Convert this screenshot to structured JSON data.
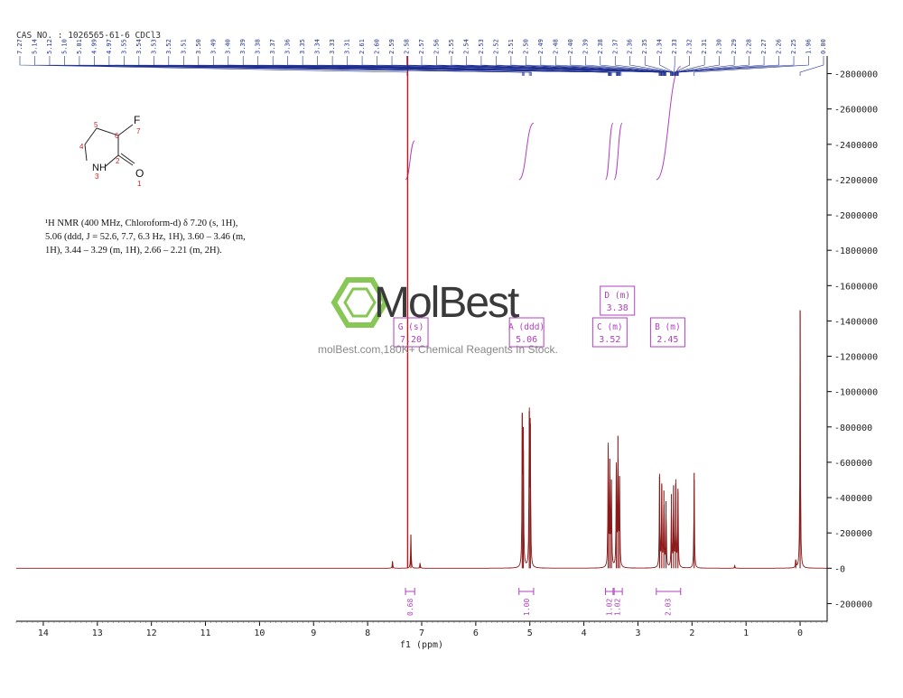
{
  "header": {
    "sample": "CAS NO. : 1026565-61-6 CDCl3"
  },
  "structure": {
    "atoms": [
      "F",
      "NH",
      "O"
    ],
    "numbers": [
      "1",
      "2",
      "3",
      "4",
      "5",
      "6",
      "7"
    ]
  },
  "nmr_text": {
    "line1": "¹H NMR (400 MHz, Chloroform-d) δ 7.20 (s, 1H),",
    "line2": "5.06 (ddd, J = 52.6, 7.7, 6.3 Hz, 1H), 3.60 – 3.46 (m,",
    "line3": "1H), 3.44 – 3.29 (m, 1H), 2.66 – 2.21 (m, 2H)."
  },
  "watermark": {
    "logo": "MolBest",
    "tagline": "molBest.com,180K+ Chemical Reagents In Stock."
  },
  "colors": {
    "spectrum": "#8b1a1a",
    "integral": "#b040c0",
    "peaklist": "#1f2f8f",
    "accent_line": "#cc1111",
    "logo_green": "#7ac143"
  },
  "chart_data": {
    "type": "line",
    "title": "",
    "xlabel": "f1 (ppm)",
    "ylabel": "",
    "xlim": [
      14.5,
      -0.5
    ],
    "ylim": [
      -300000,
      2900000
    ],
    "x_ticks": [
      14,
      13,
      12,
      11,
      10,
      9,
      8,
      7,
      6,
      5,
      4,
      3,
      2,
      1,
      0
    ],
    "y_ticks": [
      -200000,
      0,
      200000,
      400000,
      600000,
      800000,
      1000000,
      1200000,
      1400000,
      1600000,
      1800000,
      2000000,
      2200000,
      2400000,
      2600000,
      2800000
    ],
    "peaks": [
      {
        "x": 7.26,
        "y": 2900000
      },
      {
        "x": 7.2,
        "y": 190000
      },
      {
        "x": 7.54,
        "y": 40000
      },
      {
        "x": 7.03,
        "y": 30000
      },
      {
        "x": 5.14,
        "y": 880000
      },
      {
        "x": 5.12,
        "y": 800000
      },
      {
        "x": 5.01,
        "y": 890000
      },
      {
        "x": 4.99,
        "y": 820000
      },
      {
        "x": 3.55,
        "y": 680000
      },
      {
        "x": 3.52,
        "y": 620000
      },
      {
        "x": 3.49,
        "y": 500000
      },
      {
        "x": 3.4,
        "y": 560000
      },
      {
        "x": 3.37,
        "y": 750000
      },
      {
        "x": 3.34,
        "y": 520000
      },
      {
        "x": 2.6,
        "y": 520000
      },
      {
        "x": 2.56,
        "y": 480000
      },
      {
        "x": 2.52,
        "y": 440000
      },
      {
        "x": 2.48,
        "y": 380000
      },
      {
        "x": 2.38,
        "y": 420000
      },
      {
        "x": 2.34,
        "y": 470000
      },
      {
        "x": 2.3,
        "y": 480000
      },
      {
        "x": 2.26,
        "y": 450000
      },
      {
        "x": 1.96,
        "y": 540000
      },
      {
        "x": 1.21,
        "y": 15000
      },
      {
        "x": 0.08,
        "y": 50000
      },
      {
        "x": 0.0,
        "y": 1460000
      }
    ],
    "peak_labels": [
      "7.27",
      "5.14",
      "5.12",
      "5.10",
      "5.01",
      "4.99",
      "4.97",
      "3.55",
      "3.54",
      "3.53",
      "3.52",
      "3.51",
      "3.50",
      "3.49",
      "3.40",
      "3.39",
      "3.38",
      "3.37",
      "3.36",
      "3.35",
      "3.34",
      "3.33",
      "3.31",
      "2.61",
      "2.60",
      "2.59",
      "2.58",
      "2.57",
      "2.56",
      "2.55",
      "2.54",
      "2.53",
      "2.52",
      "2.51",
      "2.50",
      "2.49",
      "2.48",
      "2.40",
      "2.39",
      "2.38",
      "2.37",
      "2.36",
      "2.35",
      "2.34",
      "2.33",
      "2.32",
      "2.31",
      "2.30",
      "2.29",
      "2.28",
      "2.27",
      "2.26",
      "2.25",
      "1.96",
      "0.00"
    ],
    "multiplets": [
      {
        "letter": "G",
        "mult": "(s)",
        "shift": "7.20"
      },
      {
        "letter": "A",
        "mult": "(ddd)",
        "shift": "5.06"
      },
      {
        "letter": "C",
        "mult": "(m)",
        "shift": "3.52"
      },
      {
        "letter": "D",
        "mult": "(m)",
        "shift": "3.38"
      },
      {
        "letter": "B",
        "mult": "(m)",
        "shift": "2.45"
      }
    ],
    "integrals": [
      {
        "from": 7.3,
        "to": 7.13,
        "value": "0.68",
        "label_x": 7.22
      },
      {
        "from": 5.2,
        "to": 4.93,
        "value": "1.00",
        "label_x": 5.06
      },
      {
        "from": 3.6,
        "to": 3.46,
        "value": "1.02",
        "label_x": 3.53
      },
      {
        "from": 3.44,
        "to": 3.29,
        "value": "1.02",
        "label_x": 3.38
      },
      {
        "from": 2.66,
        "to": 2.21,
        "value": "2.03",
        "label_x": 2.45
      }
    ]
  }
}
